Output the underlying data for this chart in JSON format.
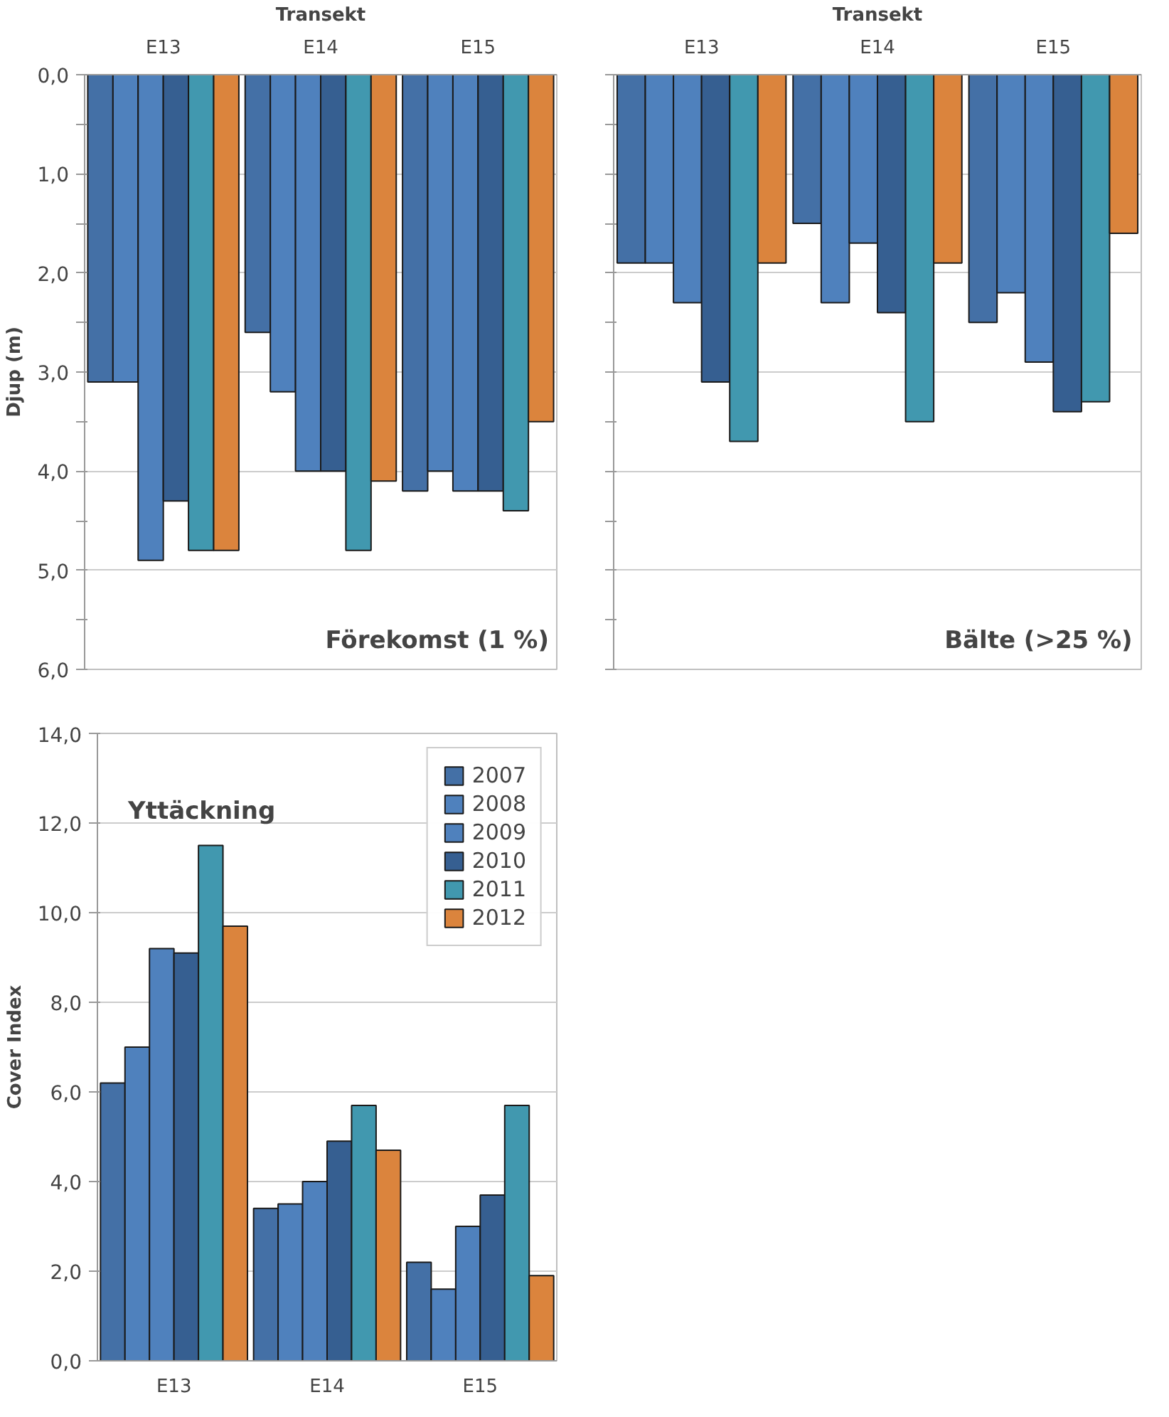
{
  "chart_data": [
    {
      "type": "bar",
      "title": "Förekomst (1 %)",
      "xlabel": "Transekt",
      "ylabel": "Djup (m)",
      "categories": [
        "E13",
        "E14",
        "E15"
      ],
      "series": [
        {
          "color": "#4470a6",
          "values": [
            3.1,
            2.6,
            4.2
          ]
        },
        {
          "color": "#4f81bd",
          "values": [
            3.1,
            3.2,
            4.0
          ]
        },
        {
          "color": "#4f81bd",
          "values": [
            4.9,
            4.0,
            4.2
          ]
        },
        {
          "color": "#365f91",
          "values": [
            4.3,
            4.0,
            4.2
          ]
        },
        {
          "color": "#4198af",
          "values": [
            4.8,
            4.8,
            4.4
          ]
        },
        {
          "color": "#db843d",
          "values": [
            4.8,
            4.1,
            3.5
          ]
        }
      ],
      "ylim": [
        6,
        0
      ],
      "yticks": [
        {
          "value": 0,
          "label": "0,0"
        },
        {
          "value": 0.5,
          "label": null
        },
        {
          "value": 1,
          "label": "1,0"
        },
        {
          "value": 1.5,
          "label": null
        },
        {
          "value": 2,
          "label": "2,0"
        },
        {
          "value": 2.5,
          "label": null
        },
        {
          "value": 3,
          "label": "3,0"
        },
        {
          "value": 3.5,
          "label": null
        },
        {
          "value": 4,
          "label": "4,0"
        },
        {
          "value": 4.5,
          "label": null
        },
        {
          "value": 5,
          "label": "5,0"
        },
        {
          "value": 5.5,
          "label": null
        },
        {
          "value": 6,
          "label": "6,0"
        }
      ],
      "grid": "y"
    },
    {
      "type": "bar",
      "title": "Bälte (>25 %)",
      "xlabel": "Transekt",
      "categories": [
        "E13",
        "E14",
        "E15"
      ],
      "series": [
        {
          "color": "#4470a6",
          "values": [
            1.9,
            1.5,
            2.5
          ]
        },
        {
          "color": "#4f81bd",
          "values": [
            1.9,
            2.3,
            2.2
          ]
        },
        {
          "color": "#4f81bd",
          "values": [
            2.3,
            1.7,
            2.9
          ]
        },
        {
          "color": "#365f91",
          "values": [
            3.1,
            2.4,
            3.4
          ]
        },
        {
          "color": "#4198af",
          "values": [
            3.7,
            3.5,
            3.3
          ]
        },
        {
          "color": "#db843d",
          "values": [
            1.9,
            1.9,
            1.6
          ]
        }
      ],
      "ylim": [
        6,
        0
      ],
      "yticks": [
        0,
        {
          "value": 0.5,
          "label": null
        },
        1,
        {
          "value": 1.5,
          "label": null
        },
        2,
        {
          "value": 2.5,
          "label": null
        },
        3,
        {
          "value": 3.5,
          "label": null
        },
        4,
        {
          "value": 4.5,
          "label": null
        },
        5,
        {
          "value": 5.5,
          "label": null
        },
        6
      ],
      "grid": "y",
      "tick_labels": "x"
    },
    {
      "type": "bar",
      "title": "Yttäckning",
      "ylabel": "Cover Index",
      "categories": [
        "E13",
        "E14",
        "E15"
      ],
      "series": [
        {
          "name": "2007",
          "color": "#4470a6",
          "values": [
            6.2,
            3.4,
            2.2
          ]
        },
        {
          "name": "2008",
          "color": "#4f81bd",
          "values": [
            7.0,
            3.5,
            1.6
          ]
        },
        {
          "name": "2009",
          "color": "#4f81bd",
          "values": [
            9.2,
            4.0,
            3.0
          ]
        },
        {
          "name": "2010",
          "color": "#365f91",
          "values": [
            9.1,
            4.9,
            3.7
          ]
        },
        {
          "name": "2011",
          "color": "#4198af",
          "values": [
            11.5,
            5.7,
            5.7
          ]
        },
        {
          "name": "2012",
          "color": "#db843d",
          "values": [
            9.7,
            4.7,
            1.9
          ]
        }
      ],
      "ylim": [
        0,
        14
      ],
      "yticks": [
        {
          "value": 0,
          "label": "0,0"
        },
        {
          "value": 2,
          "label": "2,0"
        },
        {
          "value": 4,
          "label": "4,0"
        },
        {
          "value": 6,
          "label": "6,0"
        },
        {
          "value": 8,
          "label": "8,0"
        },
        {
          "value": 10,
          "label": "10,0"
        },
        {
          "value": 12,
          "label": "12,0"
        },
        {
          "value": 14,
          "label": "14,0"
        }
      ],
      "grid": "y",
      "legend": "top right"
    }
  ]
}
